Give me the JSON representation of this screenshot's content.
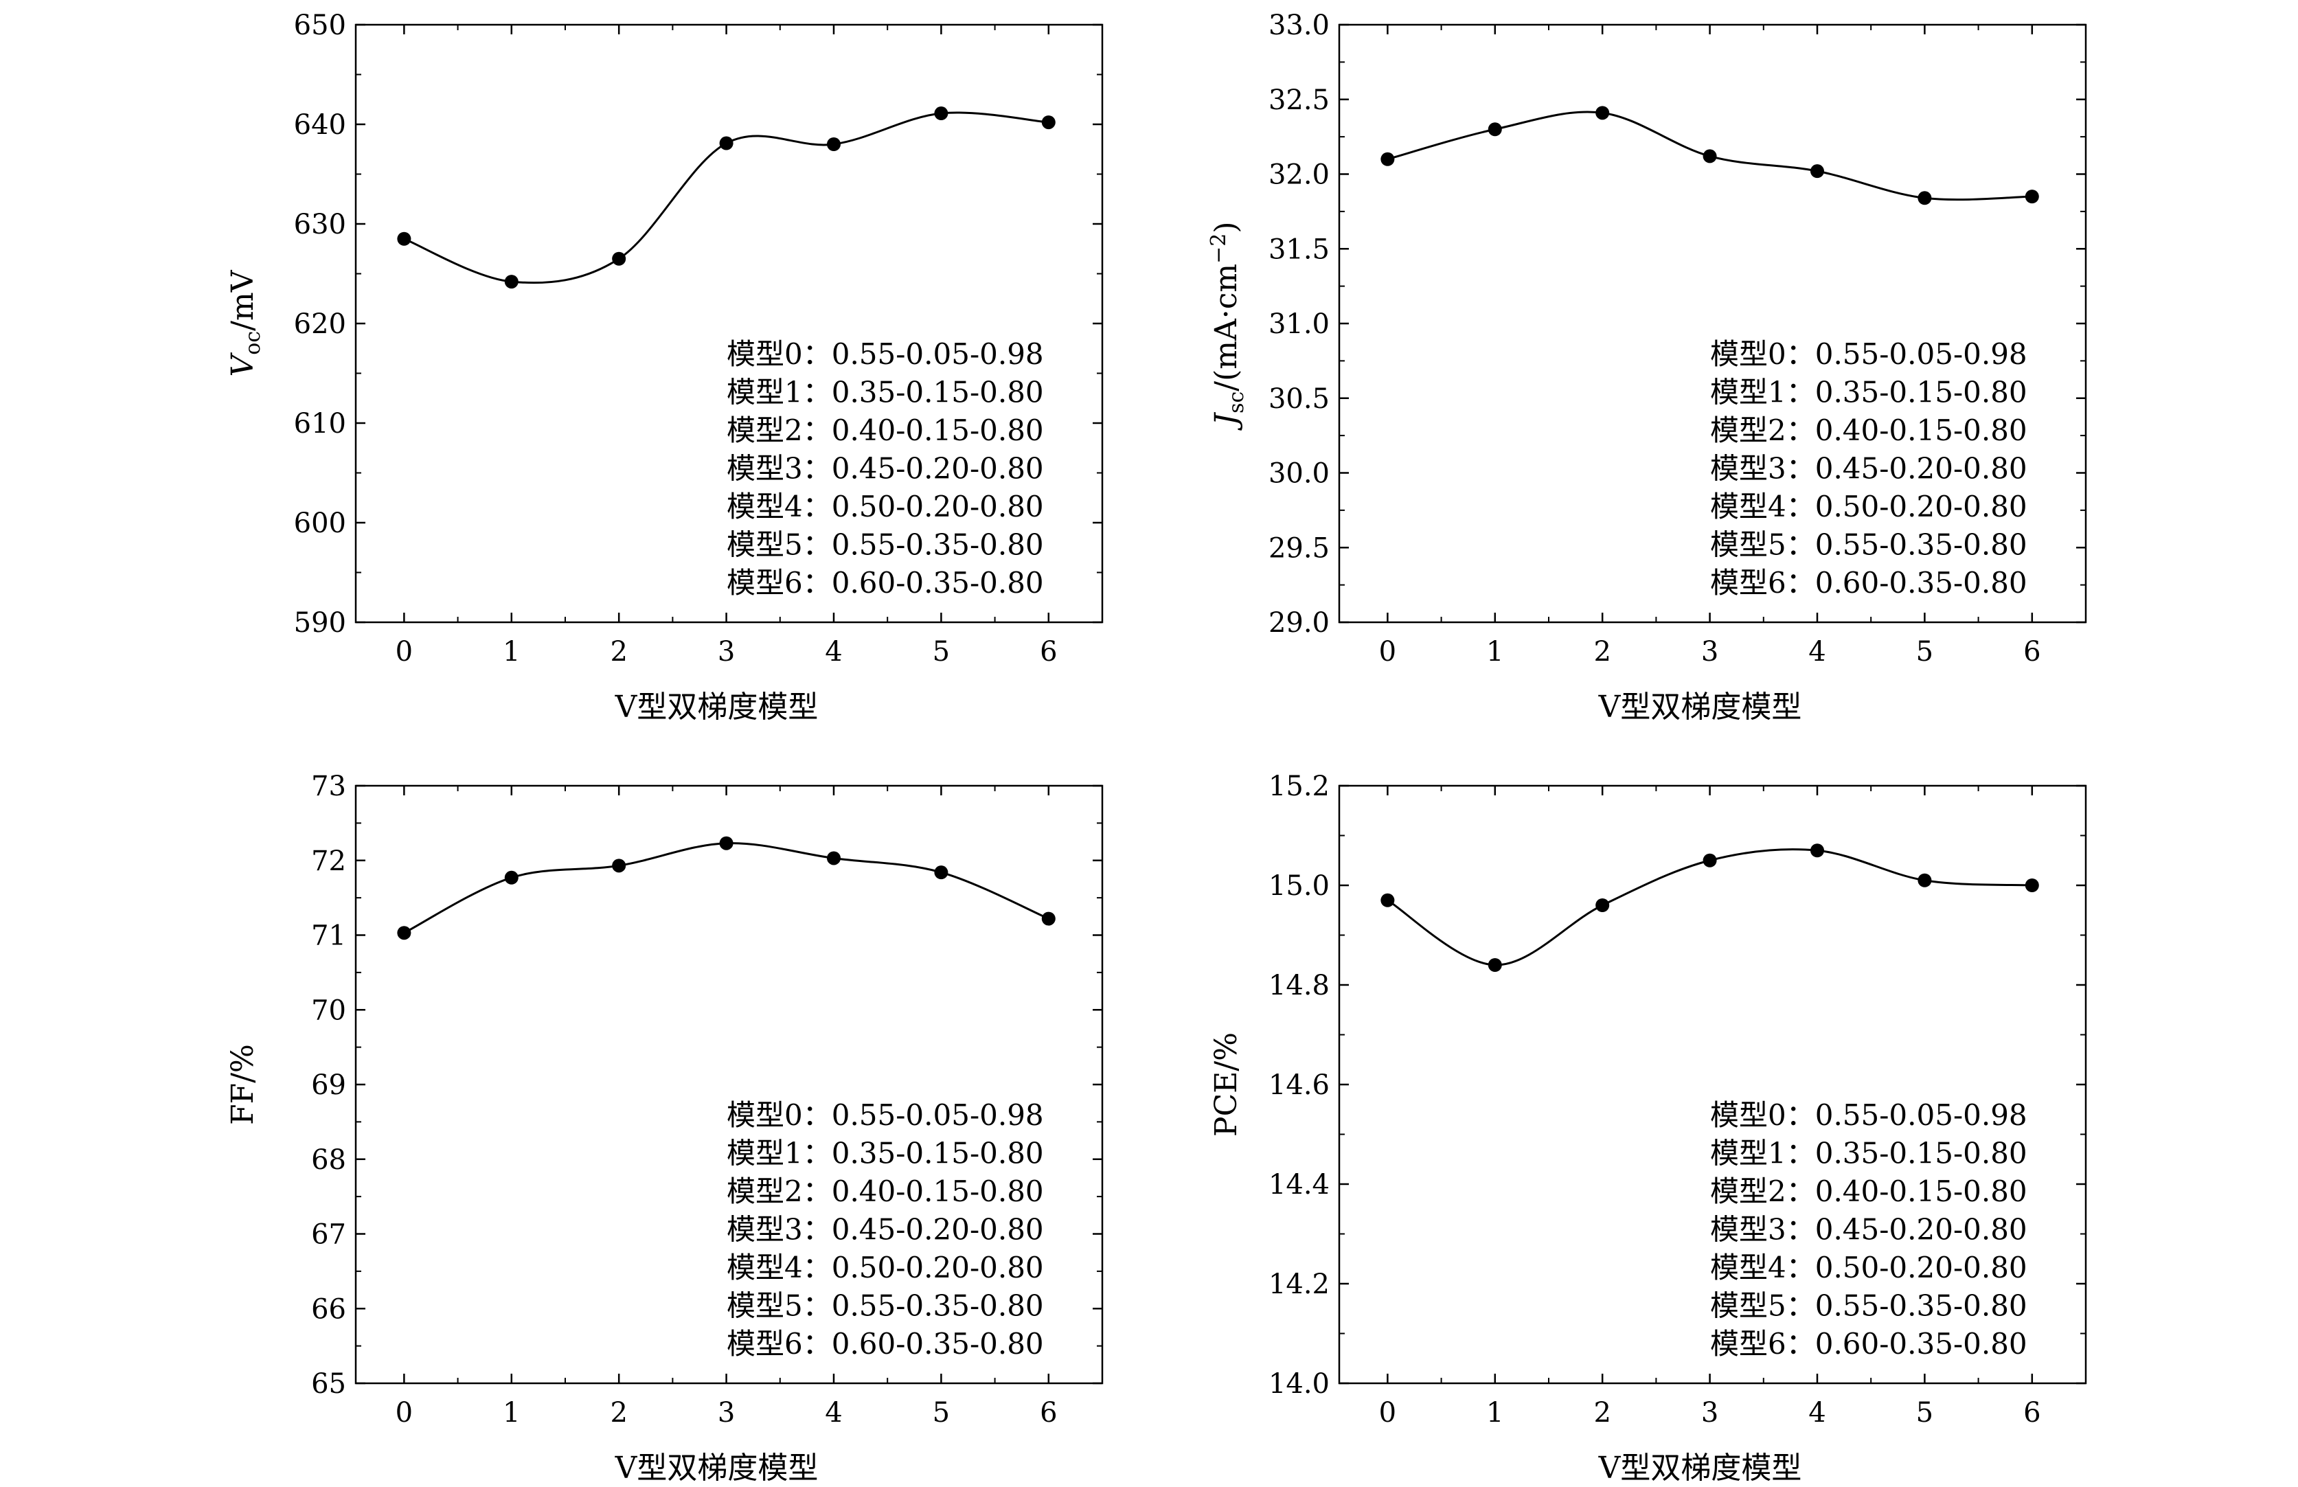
{
  "chart_data": [
    {
      "type": "line",
      "panel": "top-left",
      "ylabel": "V_oc/mV",
      "ylabel_parts": {
        "main": "V",
        "sub": "oc",
        "unit": "/mV"
      },
      "xlabel": "V型双梯度模型",
      "x": [
        0,
        1,
        2,
        3,
        4,
        5,
        6
      ],
      "values": [
        628.5,
        624.2,
        626.5,
        638.1,
        638.0,
        641.1,
        640.2
      ],
      "ylim": [
        590,
        650
      ],
      "yticks": [
        "590",
        "600",
        "610",
        "620",
        "630",
        "640",
        "650"
      ],
      "xticks": [
        "0",
        "1",
        "2",
        "3",
        "4",
        "5",
        "6"
      ],
      "grid": false,
      "legend_placement": "bottom-right",
      "legend": [
        "模型0：0.55-0.05-0.98",
        "模型1：0.35-0.15-0.80",
        "模型2：0.40-0.15-0.80",
        "模型3：0.45-0.20-0.80",
        "模型4：0.50-0.20-0.80",
        "模型5：0.55-0.35-0.80",
        "模型6：0.60-0.35-0.80"
      ]
    },
    {
      "type": "line",
      "panel": "top-right",
      "ylabel": "J_sc/(mA·cm^−2)",
      "ylabel_parts": {
        "main": "J",
        "sub": "sc",
        "unit": "/(mA·cm",
        "sup": "−2",
        "close": ")"
      },
      "xlabel": "V型双梯度模型",
      "x": [
        0,
        1,
        2,
        3,
        4,
        5,
        6
      ],
      "values": [
        32.1,
        32.3,
        32.41,
        32.12,
        32.02,
        31.84,
        31.85
      ],
      "ylim": [
        29.0,
        33.0
      ],
      "yticks": [
        "29.0",
        "29.5",
        "30.0",
        "30.5",
        "31.0",
        "31.5",
        "32.0",
        "32.5",
        "33.0"
      ],
      "xticks": [
        "0",
        "1",
        "2",
        "3",
        "4",
        "5",
        "6"
      ],
      "grid": false,
      "legend_placement": "bottom-right",
      "legend": [
        "模型0：0.55-0.05-0.98",
        "模型1：0.35-0.15-0.80",
        "模型2：0.40-0.15-0.80",
        "模型3：0.45-0.20-0.80",
        "模型4：0.50-0.20-0.80",
        "模型5：0.55-0.35-0.80",
        "模型6：0.60-0.35-0.80"
      ]
    },
    {
      "type": "line",
      "panel": "bottom-left",
      "ylabel": "FF/%",
      "ylabel_parts": {
        "main": "FF/%"
      },
      "xlabel": "V型双梯度模型",
      "x": [
        0,
        1,
        2,
        3,
        4,
        5,
        6
      ],
      "values": [
        71.03,
        71.77,
        71.93,
        72.23,
        72.03,
        71.84,
        71.22
      ],
      "ylim": [
        65,
        73
      ],
      "yticks": [
        "65",
        "66",
        "67",
        "68",
        "69",
        "70",
        "71",
        "72",
        "73"
      ],
      "xticks": [
        "0",
        "1",
        "2",
        "3",
        "4",
        "5",
        "6"
      ],
      "grid": false,
      "legend_placement": "bottom-right",
      "legend": [
        "模型0：0.55-0.05-0.98",
        "模型1：0.35-0.15-0.80",
        "模型2：0.40-0.15-0.80",
        "模型3：0.45-0.20-0.80",
        "模型4：0.50-0.20-0.80",
        "模型5：0.55-0.35-0.80",
        "模型6：0.60-0.35-0.80"
      ]
    },
    {
      "type": "line",
      "panel": "bottom-right",
      "ylabel": "PCE/%",
      "ylabel_parts": {
        "main": "PCE/%"
      },
      "xlabel": "V型双梯度模型",
      "x": [
        0,
        1,
        2,
        3,
        4,
        5,
        6
      ],
      "values": [
        14.97,
        14.84,
        14.96,
        15.05,
        15.07,
        15.01,
        15.0
      ],
      "ylim": [
        14.0,
        15.2
      ],
      "yticks": [
        "14.0",
        "14.2",
        "14.4",
        "14.6",
        "14.8",
        "15.0",
        "15.2"
      ],
      "xticks": [
        "0",
        "1",
        "2",
        "3",
        "4",
        "5",
        "6"
      ],
      "grid": false,
      "legend_placement": "bottom-right",
      "legend": [
        "模型0：0.55-0.05-0.98",
        "模型1：0.35-0.15-0.80",
        "模型2：0.40-0.15-0.80",
        "模型3：0.45-0.20-0.80",
        "模型4：0.50-0.20-0.80",
        "模型5：0.55-0.35-0.80",
        "模型6：0.60-0.35-0.80"
      ]
    }
  ]
}
